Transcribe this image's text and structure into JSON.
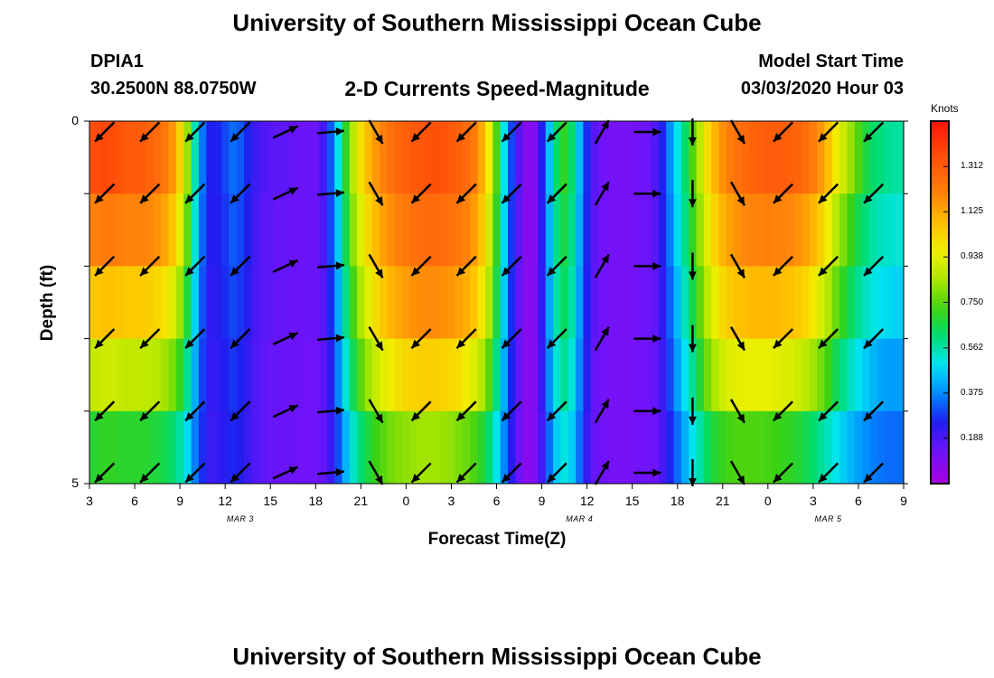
{
  "title": "University of Southern Mississippi Ocean Cube",
  "footer_title": "University of Southern Mississippi Ocean Cube",
  "station": {
    "id": "DPIA1",
    "coords": "30.2500N 88.0750W"
  },
  "subtitle": "2-D Currents Speed-Magnitude",
  "model_start": {
    "label": "Model Start Time",
    "value": "03/03/2020 Hour 03"
  },
  "chart_data": {
    "type": "heatmap",
    "title": "2-D Currents Speed-Magnitude",
    "xlabel": "Forecast Time(Z)",
    "ylabel": "Depth (ft)",
    "x_unit": "hours since 03 Z MAR 3",
    "xlim": [
      0,
      54
    ],
    "ylim": [
      0,
      5
    ],
    "x_tick_labels": [
      "3",
      "6",
      "9",
      "12",
      "15",
      "18",
      "21",
      "0",
      "3",
      "6",
      "9",
      "12",
      "15",
      "18",
      "21",
      "0",
      "3",
      "6",
      "9"
    ],
    "y_tick_labels": [
      "0",
      "5"
    ],
    "day_labels": [
      {
        "label": "MAR 3",
        "hour": 10
      },
      {
        "label": "MAR 4",
        "hour": 32.5
      },
      {
        "label": "MAR 5",
        "hour": 49
      }
    ],
    "colorbar": {
      "units": "Knots",
      "min": 0,
      "max": 1.5,
      "ticks": [
        "0.188",
        "0.375",
        "0.562",
        "0.750",
        "0.938",
        "1.125",
        "1.312"
      ]
    },
    "depth_layers": [
      {
        "top": 0,
        "bottom": 1
      },
      {
        "top": 1,
        "bottom": 2
      },
      {
        "top": 2,
        "bottom": 3
      },
      {
        "top": 3,
        "bottom": 4
      },
      {
        "top": 4,
        "bottom": 5
      }
    ],
    "time_hours": [
      0,
      0.5,
      1,
      1.5,
      2,
      2.5,
      3,
      3.5,
      4,
      4.5,
      5,
      5.5,
      6,
      6.5,
      7,
      7.5,
      8,
      8.5,
      9,
      9.5,
      10,
      10.5,
      11,
      11.5,
      12,
      12.5,
      13,
      13.5,
      14,
      14.5,
      15,
      15.5,
      16,
      16.5,
      17,
      17.5,
      18,
      18.5,
      19,
      19.5,
      20,
      20.5,
      21,
      21.5,
      22,
      22.5,
      23,
      23.5,
      24,
      24.5,
      25,
      25.5,
      26,
      26.5,
      27,
      27.5,
      28,
      28.5,
      29,
      29.5,
      30,
      30.5,
      31,
      31.5,
      32,
      32.5,
      33,
      33.5,
      34,
      34.5,
      35,
      35.5,
      36,
      36.5,
      37,
      37.5,
      38,
      38.5,
      39,
      39.5,
      40,
      40.5,
      41,
      41.5,
      42,
      42.5,
      43,
      43.5,
      44,
      44.5,
      45,
      45.5,
      46,
      46.5,
      47,
      47.5,
      48,
      48.5,
      49,
      49.5,
      50,
      50.5,
      51,
      51.5,
      52,
      52.5,
      53,
      53.5,
      54
    ],
    "speed_knots": [
      [
        1.35,
        1.36,
        1.37,
        1.36,
        1.34,
        1.32,
        1.32,
        1.31,
        1.29,
        1.27,
        1.23,
        1.16,
        1.03,
        0.82,
        0.55,
        0.35,
        0.25,
        0.26,
        0.3,
        0.34,
        0.32,
        0.26,
        0.21,
        0.18,
        0.17,
        0.16,
        0.16,
        0.15,
        0.14,
        0.14,
        0.14,
        0.2,
        0.32,
        0.5,
        0.7,
        0.87,
        1.0,
        1.09,
        1.16,
        1.21,
        1.25,
        1.28,
        1.3,
        1.32,
        1.33,
        1.34,
        1.35,
        1.34,
        1.32,
        1.3,
        1.27,
        1.22,
        1.12,
        0.96,
        0.74,
        0.5,
        0.3,
        0.17,
        0.08,
        0.1,
        0.25,
        0.45,
        0.62,
        0.7,
        0.62,
        0.44,
        0.27,
        0.17,
        0.13,
        0.12,
        0.12,
        0.12,
        0.12,
        0.13,
        0.14,
        0.18,
        0.26,
        0.38,
        0.5,
        0.62,
        0.74,
        0.87,
        1.0,
        1.1,
        1.17,
        1.22,
        1.25,
        1.27,
        1.29,
        1.3,
        1.31,
        1.31,
        1.31,
        1.3,
        1.29,
        1.26,
        1.22,
        1.16,
        1.08,
        0.98,
        0.9,
        0.82,
        0.74,
        0.67,
        0.62,
        0.6,
        0.58,
        0.57,
        0.57
      ],
      [
        1.2,
        1.21,
        1.22,
        1.22,
        1.21,
        1.2,
        1.2,
        1.2,
        1.19,
        1.17,
        1.13,
        1.06,
        0.94,
        0.76,
        0.52,
        0.33,
        0.24,
        0.25,
        0.28,
        0.32,
        0.3,
        0.25,
        0.2,
        0.17,
        0.16,
        0.15,
        0.15,
        0.14,
        0.14,
        0.14,
        0.14,
        0.18,
        0.3,
        0.46,
        0.65,
        0.81,
        0.93,
        1.02,
        1.09,
        1.14,
        1.18,
        1.21,
        1.23,
        1.25,
        1.26,
        1.27,
        1.27,
        1.26,
        1.25,
        1.23,
        1.2,
        1.15,
        1.06,
        0.91,
        0.7,
        0.48,
        0.28,
        0.16,
        0.08,
        0.1,
        0.24,
        0.43,
        0.59,
        0.66,
        0.59,
        0.42,
        0.26,
        0.16,
        0.13,
        0.12,
        0.12,
        0.12,
        0.12,
        0.13,
        0.14,
        0.17,
        0.25,
        0.36,
        0.48,
        0.59,
        0.7,
        0.82,
        0.94,
        1.03,
        1.1,
        1.14,
        1.17,
        1.19,
        1.2,
        1.2,
        1.21,
        1.2,
        1.2,
        1.19,
        1.17,
        1.14,
        1.1,
        1.04,
        0.96,
        0.87,
        0.79,
        0.72,
        0.65,
        0.6,
        0.56,
        0.54,
        0.53,
        0.52,
        0.52
      ],
      [
        1.05,
        1.06,
        1.07,
        1.07,
        1.06,
        1.05,
        1.05,
        1.05,
        1.04,
        1.02,
        0.99,
        0.93,
        0.83,
        0.67,
        0.47,
        0.31,
        0.23,
        0.24,
        0.27,
        0.3,
        0.28,
        0.24,
        0.19,
        0.17,
        0.16,
        0.15,
        0.15,
        0.14,
        0.14,
        0.14,
        0.14,
        0.17,
        0.27,
        0.42,
        0.59,
        0.73,
        0.85,
        0.94,
        1.01,
        1.06,
        1.1,
        1.13,
        1.15,
        1.17,
        1.18,
        1.18,
        1.18,
        1.17,
        1.16,
        1.14,
        1.11,
        1.06,
        0.98,
        0.85,
        0.66,
        0.46,
        0.27,
        0.15,
        0.08,
        0.1,
        0.23,
        0.41,
        0.56,
        0.63,
        0.56,
        0.4,
        0.25,
        0.16,
        0.13,
        0.12,
        0.12,
        0.12,
        0.12,
        0.13,
        0.14,
        0.16,
        0.23,
        0.33,
        0.44,
        0.55,
        0.65,
        0.76,
        0.87,
        0.95,
        1.01,
        1.05,
        1.07,
        1.08,
        1.09,
        1.09,
        1.09,
        1.09,
        1.08,
        1.07,
        1.05,
        1.02,
        0.98,
        0.92,
        0.85,
        0.77,
        0.7,
        0.64,
        0.58,
        0.54,
        0.51,
        0.49,
        0.48,
        0.47,
        0.47
      ],
      [
        0.88,
        0.89,
        0.9,
        0.9,
        0.89,
        0.88,
        0.88,
        0.88,
        0.87,
        0.86,
        0.83,
        0.79,
        0.71,
        0.58,
        0.42,
        0.29,
        0.22,
        0.23,
        0.25,
        0.28,
        0.26,
        0.22,
        0.18,
        0.16,
        0.15,
        0.15,
        0.14,
        0.14,
        0.14,
        0.13,
        0.13,
        0.16,
        0.24,
        0.37,
        0.52,
        0.65,
        0.75,
        0.83,
        0.89,
        0.94,
        0.97,
        1.0,
        1.02,
        1.03,
        1.04,
        1.04,
        1.04,
        1.03,
        1.02,
        1.0,
        0.97,
        0.93,
        0.86,
        0.75,
        0.59,
        0.42,
        0.26,
        0.15,
        0.08,
        0.1,
        0.22,
        0.38,
        0.52,
        0.58,
        0.52,
        0.37,
        0.24,
        0.15,
        0.13,
        0.12,
        0.12,
        0.12,
        0.12,
        0.13,
        0.13,
        0.15,
        0.21,
        0.3,
        0.4,
        0.49,
        0.58,
        0.68,
        0.78,
        0.85,
        0.9,
        0.93,
        0.94,
        0.95,
        0.95,
        0.95,
        0.95,
        0.94,
        0.93,
        0.92,
        0.9,
        0.87,
        0.83,
        0.78,
        0.72,
        0.65,
        0.59,
        0.54,
        0.49,
        0.46,
        0.43,
        0.41,
        0.4,
        0.4,
        0.4
      ],
      [
        0.68,
        0.69,
        0.7,
        0.7,
        0.69,
        0.69,
        0.69,
        0.69,
        0.68,
        0.67,
        0.65,
        0.62,
        0.57,
        0.48,
        0.36,
        0.27,
        0.21,
        0.22,
        0.24,
        0.26,
        0.25,
        0.21,
        0.18,
        0.16,
        0.15,
        0.14,
        0.14,
        0.14,
        0.13,
        0.13,
        0.13,
        0.15,
        0.21,
        0.31,
        0.43,
        0.53,
        0.61,
        0.67,
        0.72,
        0.75,
        0.78,
        0.8,
        0.81,
        0.82,
        0.83,
        0.83,
        0.83,
        0.82,
        0.81,
        0.79,
        0.77,
        0.74,
        0.69,
        0.61,
        0.5,
        0.37,
        0.24,
        0.14,
        0.08,
        0.1,
        0.2,
        0.34,
        0.46,
        0.51,
        0.46,
        0.34,
        0.22,
        0.15,
        0.13,
        0.12,
        0.12,
        0.12,
        0.12,
        0.13,
        0.13,
        0.14,
        0.19,
        0.26,
        0.34,
        0.42,
        0.49,
        0.56,
        0.63,
        0.68,
        0.71,
        0.73,
        0.74,
        0.74,
        0.74,
        0.74,
        0.73,
        0.72,
        0.71,
        0.7,
        0.68,
        0.65,
        0.62,
        0.58,
        0.54,
        0.5,
        0.46,
        0.43,
        0.4,
        0.38,
        0.36,
        0.35,
        0.34,
        0.34,
        0.34
      ]
    ],
    "arrow_times": [
      1,
      4,
      7,
      10,
      13,
      16,
      19,
      22,
      25,
      28,
      31,
      34,
      37,
      40,
      43,
      46,
      49,
      52
    ],
    "arrow_depths": [
      0.15,
      1,
      2,
      3,
      4,
      4.85
    ],
    "arrow_dir_deg": [
      135,
      135,
      135,
      135,
      -25,
      -5,
      60,
      135,
      135,
      135,
      135,
      -60,
      0,
      90,
      60,
      135,
      135,
      135
    ]
  }
}
